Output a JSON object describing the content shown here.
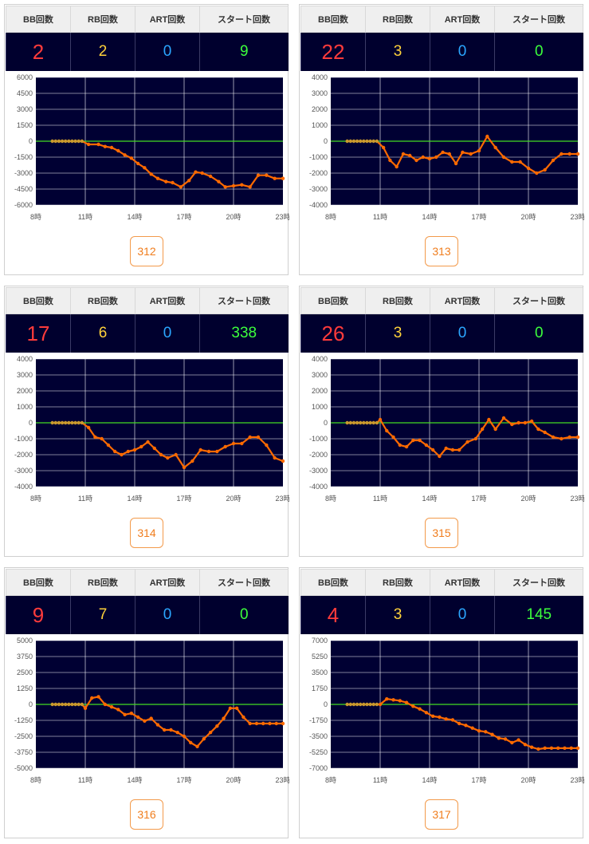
{
  "headers": {
    "bb": "BB回数",
    "rb": "RB回数",
    "art": "ART回数",
    "start": "スタート回数"
  },
  "colors": {
    "bb": "#ff3b3b",
    "rb": "#ffd23b",
    "art": "#2ba6ff",
    "start": "#3cff3c",
    "line": "#ff6a00",
    "zero": "#44dd22",
    "plot_bg": "#000033",
    "grid": "#ffffff",
    "button": "#f07d1d"
  },
  "x_ticks": [
    "8時",
    "11時",
    "14時",
    "17時",
    "20時",
    "23時"
  ],
  "machines": [
    {
      "id": "312",
      "bb": "2",
      "rb": "2",
      "art": "0",
      "start": "9",
      "chart_data": {
        "type": "line",
        "xlim": [
          8,
          23
        ],
        "ylim": [
          -6000,
          6000
        ],
        "y_ticks": [
          "6000",
          "4500",
          "3000",
          "1500",
          "0",
          "-1500",
          "-3000",
          "-4500",
          "-6000"
        ],
        "y_tick_values": [
          6000,
          4500,
          3000,
          1500,
          0,
          -1500,
          -3000,
          -4500,
          -6000
        ],
        "x": [
          9,
          9.2,
          9.4,
          9.6,
          9.8,
          10,
          10.2,
          10.4,
          10.6,
          10.8,
          11.2,
          11.8,
          12.2,
          12.6,
          13,
          13.4,
          13.8,
          14.2,
          14.6,
          15,
          15.4,
          15.9,
          16.3,
          16.8,
          17.3,
          17.7,
          18.1,
          18.6,
          19.1,
          19.5,
          20,
          20.5,
          21,
          21.5,
          22,
          22.5,
          23
        ],
        "y": [
          0,
          0,
          0,
          0,
          0,
          0,
          0,
          0,
          0,
          0,
          -300,
          -300,
          -500,
          -600,
          -900,
          -1300,
          -1600,
          -2100,
          -2500,
          -3100,
          -3500,
          -3800,
          -3900,
          -4300,
          -3700,
          -2900,
          -3000,
          -3300,
          -3800,
          -4300,
          -4200,
          -4100,
          -4300,
          -3200,
          -3200,
          -3500,
          -3500
        ]
      }
    },
    {
      "id": "313",
      "bb": "22",
      "rb": "3",
      "art": "0",
      "start": "0",
      "chart_data": {
        "type": "line",
        "xlim": [
          8,
          23
        ],
        "ylim": [
          -4000,
          4000
        ],
        "y_ticks": [
          "4000",
          "3000",
          "2000",
          "1000",
          "0",
          "-1000",
          "-2000",
          "-3000",
          "-4000"
        ],
        "y_tick_values": [
          4000,
          3000,
          2000,
          1000,
          0,
          -1000,
          -2000,
          -3000,
          -4000
        ],
        "x": [
          9,
          9.2,
          9.4,
          9.6,
          9.8,
          10,
          10.2,
          10.4,
          10.6,
          10.8,
          11.2,
          11.6,
          12,
          12.4,
          12.8,
          13.2,
          13.6,
          14,
          14.4,
          14.8,
          15.2,
          15.6,
          16,
          16.5,
          17,
          17.5,
          18,
          18.5,
          19,
          19.5,
          20,
          20.5,
          21,
          21.5,
          22,
          22.5,
          23
        ],
        "y": [
          0,
          0,
          0,
          0,
          0,
          0,
          0,
          0,
          0,
          0,
          -400,
          -1200,
          -1600,
          -800,
          -900,
          -1200,
          -1000,
          -1100,
          -1000,
          -700,
          -800,
          -1400,
          -700,
          -800,
          -600,
          300,
          -400,
          -1000,
          -1300,
          -1300,
          -1700,
          -2000,
          -1800,
          -1200,
          -800,
          -800,
          -800
        ]
      }
    },
    {
      "id": "314",
      "bb": "17",
      "rb": "6",
      "art": "0",
      "start": "338",
      "chart_data": {
        "type": "line",
        "xlim": [
          8,
          23
        ],
        "ylim": [
          -4000,
          4000
        ],
        "y_ticks": [
          "4000",
          "3000",
          "2000",
          "1000",
          "0",
          "-1000",
          "-2000",
          "-3000",
          "-4000"
        ],
        "y_tick_values": [
          4000,
          3000,
          2000,
          1000,
          0,
          -1000,
          -2000,
          -3000,
          -4000
        ],
        "x": [
          9,
          9.2,
          9.4,
          9.6,
          9.8,
          10,
          10.2,
          10.4,
          10.6,
          10.8,
          11.2,
          11.6,
          12,
          12.4,
          12.8,
          13.2,
          13.6,
          14,
          14.4,
          14.8,
          15.2,
          15.6,
          16,
          16.5,
          17,
          17.5,
          18,
          18.5,
          19,
          19.5,
          20,
          20.5,
          21,
          21.5,
          22,
          22.5,
          23
        ],
        "y": [
          0,
          0,
          0,
          0,
          0,
          0,
          0,
          0,
          0,
          0,
          -300,
          -900,
          -1000,
          -1400,
          -1800,
          -2000,
          -1800,
          -1700,
          -1500,
          -1200,
          -1600,
          -2000,
          -2200,
          -2000,
          -2800,
          -2400,
          -1700,
          -1800,
          -1800,
          -1500,
          -1300,
          -1300,
          -900,
          -900,
          -1400,
          -2200,
          -2400
        ]
      }
    },
    {
      "id": "315",
      "bb": "26",
      "rb": "3",
      "art": "0",
      "start": "0",
      "chart_data": {
        "type": "line",
        "xlim": [
          8,
          23
        ],
        "ylim": [
          -4000,
          4000
        ],
        "y_ticks": [
          "4000",
          "3000",
          "2000",
          "1000",
          "0",
          "-1000",
          "-2000",
          "-3000",
          "-4000"
        ],
        "y_tick_values": [
          4000,
          3000,
          2000,
          1000,
          0,
          -1000,
          -2000,
          -3000,
          -4000
        ],
        "x": [
          9,
          9.2,
          9.4,
          9.6,
          9.8,
          10,
          10.2,
          10.4,
          10.6,
          10.8,
          11,
          11.4,
          11.8,
          12.2,
          12.6,
          13,
          13.4,
          13.8,
          14.2,
          14.6,
          15,
          15.4,
          15.8,
          16.3,
          16.8,
          17.2,
          17.6,
          18,
          18.5,
          19,
          19.4,
          19.8,
          20.2,
          20.6,
          21,
          21.5,
          22,
          22.5,
          23
        ],
        "y": [
          0,
          0,
          0,
          0,
          0,
          0,
          0,
          0,
          0,
          0,
          200,
          -500,
          -900,
          -1400,
          -1500,
          -1100,
          -1100,
          -1400,
          -1700,
          -2100,
          -1600,
          -1700,
          -1700,
          -1200,
          -1000,
          -400,
          200,
          -400,
          300,
          -100,
          0,
          0,
          100,
          -400,
          -600,
          -900,
          -1000,
          -900,
          -900
        ]
      }
    },
    {
      "id": "316",
      "bb": "9",
      "rb": "7",
      "art": "0",
      "start": "0",
      "chart_data": {
        "type": "line",
        "xlim": [
          8,
          23
        ],
        "ylim": [
          -5000,
          5000
        ],
        "y_ticks": [
          "5000",
          "3750",
          "2500",
          "1250",
          "0",
          "-1250",
          "-2500",
          "-3750",
          "-5000"
        ],
        "y_tick_values": [
          5000,
          3750,
          2500,
          1250,
          0,
          -1250,
          -2500,
          -3750,
          -5000
        ],
        "x": [
          9,
          9.2,
          9.4,
          9.6,
          9.8,
          10,
          10.2,
          10.4,
          10.6,
          10.8,
          11,
          11.4,
          11.8,
          12.2,
          12.6,
          13,
          13.4,
          13.8,
          14.2,
          14.6,
          15,
          15.4,
          15.8,
          16.2,
          16.6,
          17,
          17.4,
          17.8,
          18.2,
          18.6,
          19,
          19.4,
          19.8,
          20.2,
          20.6,
          21,
          21.4,
          21.8,
          22.2,
          22.6,
          23
        ],
        "y": [
          0,
          0,
          0,
          0,
          0,
          0,
          0,
          0,
          0,
          0,
          -300,
          500,
          600,
          0,
          -200,
          -400,
          -800,
          -700,
          -1000,
          -1300,
          -1100,
          -1600,
          -2000,
          -2000,
          -2200,
          -2500,
          -3000,
          -3300,
          -2700,
          -2200,
          -1700,
          -1100,
          -300,
          -300,
          -1000,
          -1500,
          -1500,
          -1500,
          -1500,
          -1500,
          -1500
        ]
      }
    },
    {
      "id": "317",
      "bb": "4",
      "rb": "3",
      "art": "0",
      "start": "145",
      "chart_data": {
        "type": "line",
        "xlim": [
          8,
          23
        ],
        "ylim": [
          -7000,
          7000
        ],
        "y_ticks": [
          "7000",
          "5250",
          "3500",
          "1750",
          "0",
          "-1750",
          "-3500",
          "-5250",
          "-7000"
        ],
        "y_tick_values": [
          7000,
          5250,
          3500,
          1750,
          0,
          -1750,
          -3500,
          -5250,
          -7000
        ],
        "x": [
          9,
          9.2,
          9.4,
          9.6,
          9.8,
          10,
          10.2,
          10.4,
          10.6,
          10.8,
          11,
          11.4,
          11.8,
          12.2,
          12.6,
          13,
          13.4,
          13.8,
          14.2,
          14.6,
          15,
          15.4,
          15.8,
          16.2,
          16.6,
          17,
          17.4,
          17.8,
          18.2,
          18.6,
          19,
          19.4,
          19.8,
          20.2,
          20.6,
          21,
          21.4,
          21.8,
          22.2,
          22.6,
          23
        ],
        "y": [
          0,
          0,
          0,
          0,
          0,
          0,
          0,
          0,
          0,
          0,
          0,
          600,
          500,
          400,
          200,
          -200,
          -500,
          -900,
          -1300,
          -1400,
          -1600,
          -1700,
          -2100,
          -2300,
          -2600,
          -2900,
          -3000,
          -3300,
          -3700,
          -3800,
          -4200,
          -3900,
          -4400,
          -4700,
          -4900,
          -4800,
          -4800,
          -4800,
          -4800,
          -4800,
          -4800
        ]
      }
    }
  ]
}
